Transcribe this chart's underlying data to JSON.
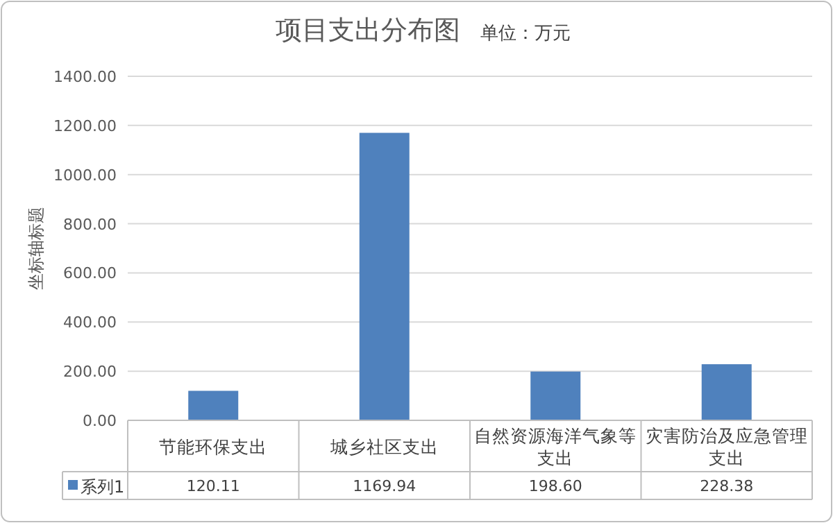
{
  "chart_data": {
    "type": "bar",
    "title": "项目支出分布图",
    "subtitle": "单位：万元",
    "ylabel": "坐标轴标题",
    "categories": [
      "节能环保支出",
      "城乡社区支出",
      "自然资源海洋气象等支出",
      "灾害防治及应急管理支出"
    ],
    "series": [
      {
        "name": "系列1",
        "color": "#4f81bd",
        "values": [
          120.11,
          1169.94,
          198.6,
          228.38
        ],
        "value_labels": [
          "120.11",
          "1169.94",
          "198.60",
          "228.38"
        ]
      }
    ],
    "ylim": [
      0,
      1400
    ],
    "yticks": [
      {
        "value": 0,
        "label": "0.00"
      },
      {
        "value": 200,
        "label": "200.00"
      },
      {
        "value": 400,
        "label": "400.00"
      },
      {
        "value": 600,
        "label": "600.00"
      },
      {
        "value": 800,
        "label": "800.00"
      },
      {
        "value": 1000,
        "label": "1000.00"
      },
      {
        "value": 1200,
        "label": "1200.00"
      },
      {
        "value": 1400,
        "label": "1400.00"
      }
    ],
    "grid": "y",
    "legend": "bottom"
  }
}
